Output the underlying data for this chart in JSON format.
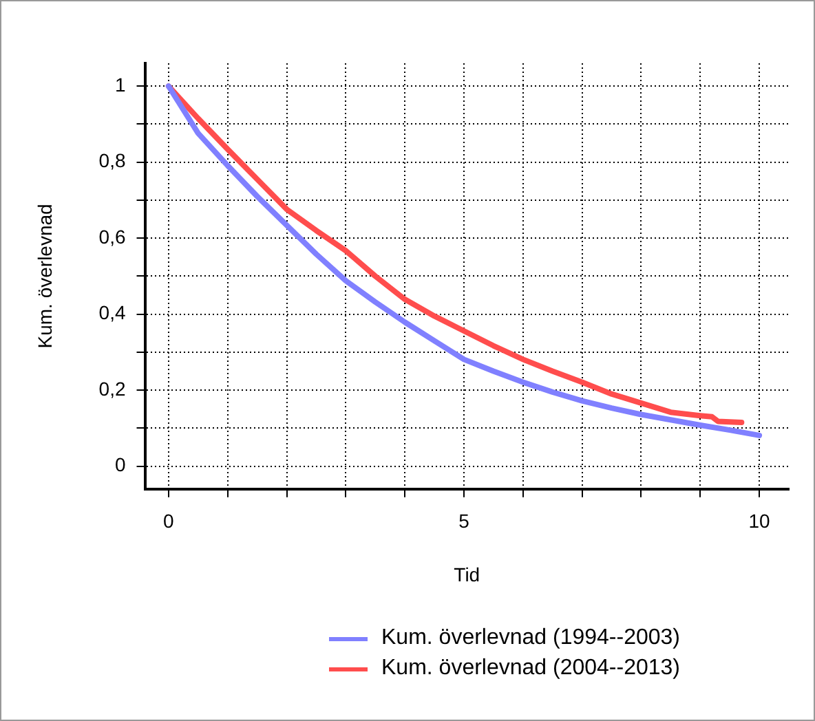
{
  "chart_data": {
    "type": "line",
    "xlabel": "Tid",
    "ylabel": "Kum. överlevnad",
    "xlim": [
      -0.4,
      10.5
    ],
    "ylim": [
      -0.06,
      1.06
    ],
    "xticks": [
      0,
      {
        "value": 1,
        "label": null
      },
      {
        "value": 2,
        "label": null
      },
      {
        "value": 3,
        "label": null
      },
      {
        "value": 4,
        "label": null
      },
      5,
      {
        "value": 6,
        "label": null
      },
      {
        "value": 7,
        "label": null
      },
      {
        "value": 8,
        "label": null
      },
      {
        "value": 9,
        "label": null
      },
      10
    ],
    "yticks": [
      0,
      {
        "value": 0.1,
        "label": null
      },
      {
        "value": 0.2,
        "label": "0,2"
      },
      {
        "value": 0.3,
        "label": null
      },
      {
        "value": 0.4,
        "label": "0,4"
      },
      {
        "value": 0.5,
        "label": null
      },
      {
        "value": 0.6,
        "label": "0,6"
      },
      {
        "value": 0.7,
        "label": null
      },
      {
        "value": 0.8,
        "label": "0,8"
      },
      {
        "value": 0.9,
        "label": null
      },
      1
    ],
    "grid": true,
    "legend": "bottom",
    "marker": "none",
    "line_style": "solid",
    "series": [
      {
        "name": "Kum. överlevnad (1994--2003)",
        "color": "#8080ff",
        "x": [
          0,
          0.5,
          1,
          1.5,
          2,
          2.5,
          3,
          3.5,
          4,
          4.5,
          5,
          5.5,
          6,
          6.5,
          7,
          7.5,
          8,
          8.5,
          9,
          9.5,
          10
        ],
        "values": [
          1,
          0.876,
          0.791,
          0.71,
          0.634,
          0.558,
          0.488,
          0.432,
          0.379,
          0.33,
          0.281,
          0.25,
          0.221,
          0.195,
          0.172,
          0.153,
          0.136,
          0.122,
          0.108,
          0.095,
          0.081
        ]
      },
      {
        "name": "Kum. överlevnad (2004--2013)",
        "color": "#ff4d4d",
        "x": [
          0,
          0.5,
          1,
          1.5,
          2,
          2.5,
          3,
          3.5,
          4,
          4.5,
          5,
          5.5,
          6,
          6.5,
          7,
          7.5,
          8,
          8.5,
          9,
          9.2,
          9.3,
          9.7
        ],
        "values": [
          1,
          0.915,
          0.834,
          0.755,
          0.676,
          0.62,
          0.567,
          0.5,
          0.439,
          0.395,
          0.356,
          0.317,
          0.281,
          0.25,
          0.221,
          0.19,
          0.166,
          0.142,
          0.133,
          0.13,
          0.118,
          0.115
        ]
      }
    ]
  }
}
